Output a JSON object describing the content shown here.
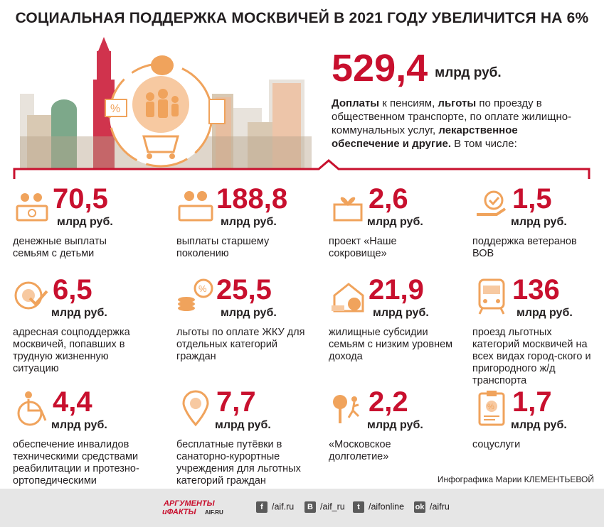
{
  "title": "СОЦИАЛЬНАЯ ПОДДЕРЖКА МОСКВИЧЕЙ В 2021 ГОДУ УВЕЛИЧИТСЯ НА 6%",
  "total": {
    "value": "529,4",
    "unit": "млрд руб."
  },
  "intro": {
    "p1b": "Доплаты",
    "p2": " к пенсиям, ",
    "p3b": "льготы",
    "p4": " по проезду в общественном транспорте, по оплате жилищно-коммунальных услуг, ",
    "p5b": "лекарственное обеспечение и другие.",
    "p6": " В том числе:"
  },
  "items": [
    {
      "value": "70,5",
      "unit": "млрд руб.",
      "desc": "денежные выплаты семьям с детьми",
      "icon": "family-money-icon"
    },
    {
      "value": "188,8",
      "unit": "млрд руб.",
      "desc": "выплаты старшему поколению",
      "icon": "elderly-money-icon"
    },
    {
      "value": "2,6",
      "unit": "млрд руб.",
      "desc": "проект «Наше сокровище»",
      "icon": "gift-heart-icon"
    },
    {
      "value": "1,5",
      "unit": "млрд руб.",
      "desc": "поддержка ветеранов ВОВ",
      "icon": "hand-medal-icon"
    },
    {
      "value": "6,5",
      "unit": "млрд руб.",
      "desc": "адресная соцподдержка москвичей, попавших в трудную жизненную ситуацию",
      "icon": "target-check-icon"
    },
    {
      "value": "25,5",
      "unit": "млрд руб.",
      "desc": "льготы по оплате ЖКУ для отдельных категорий граждан",
      "icon": "coins-percent-icon"
    },
    {
      "value": "21,9",
      "unit": "млрд руб.",
      "desc": "жилищные субсидии семьям с низким уровнем дохода",
      "icon": "house-coin-icon"
    },
    {
      "value": "136",
      "unit": "млрд руб.",
      "desc": "проезд льготных категорий москвичей на всех видах город-ского и пригородного ж/д транспорта",
      "icon": "train-icon"
    },
    {
      "value": "4,4",
      "unit": "млрд руб.",
      "desc": "обеспечение инвалидов техническими средствами реабилитации и протезно-ортопедическими изделиями",
      "icon": "wheelchair-icon"
    },
    {
      "value": "7,7",
      "unit": "млрд руб.",
      "desc": "бесплатные путёвки в санаторно-курортные учреждения для льготных категорий граждан",
      "icon": "location-palm-icon"
    },
    {
      "value": "2,2",
      "unit": "млрд руб.",
      "desc": "«Московское долголетие»",
      "icon": "runner-tree-icon"
    },
    {
      "value": "1,7",
      "unit": "млрд руб.",
      "desc": "соцуслуги",
      "icon": "clipboard-percent-icon"
    }
  ],
  "credit": "Инфографика Марии КЛЕМЕНТЬЕВОЙ",
  "footer": {
    "logo_line1": "АРГУМЕНТЫ",
    "logo_line2": "иФАКТЫ",
    "logo_domain": "AIF.RU",
    "social": [
      {
        "icon": "facebook-icon",
        "glyph": "f",
        "label": "/aif.ru"
      },
      {
        "icon": "vk-icon",
        "glyph": "B",
        "label": "/aif_ru"
      },
      {
        "icon": "twitter-icon",
        "glyph": "t",
        "label": "/aifonline"
      },
      {
        "icon": "odnoklassniki-icon",
        "glyph": "ok",
        "label": "/aifru"
      }
    ]
  },
  "colors": {
    "accent": "#c8102e",
    "text": "#231f20",
    "footer_bg": "#e6e6e6",
    "icon_orange": "#f0a35c"
  }
}
